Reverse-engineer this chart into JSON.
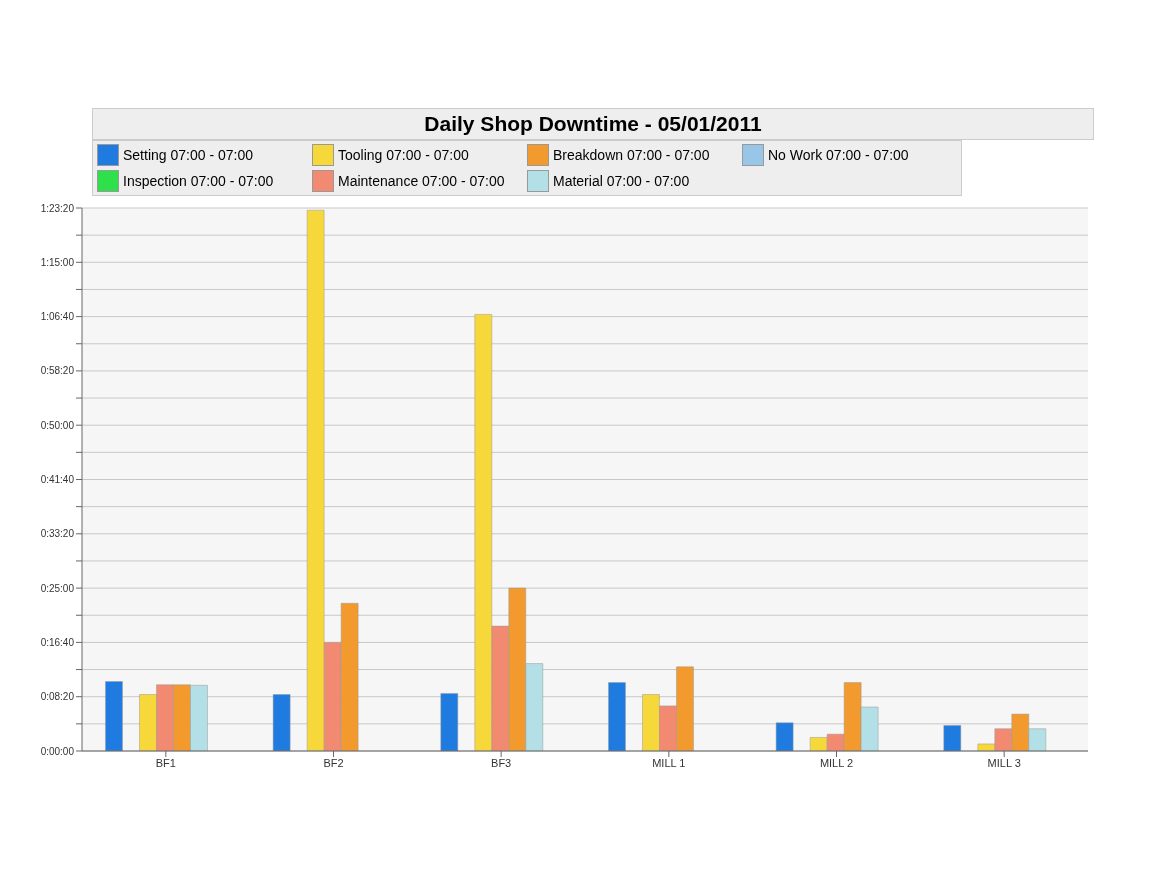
{
  "chart_data": {
    "type": "bar",
    "title": "Daily Shop Downtime - 05/01/2011",
    "categories": [
      "BF1",
      "BF2",
      "BF3",
      "MILL 1",
      "MILL 2",
      "MILL 3"
    ],
    "series": [
      {
        "name": "Setting 07:00 - 07:00",
        "color": "#1f7be0",
        "values": [
          640,
          520,
          530,
          630,
          260,
          235
        ]
      },
      {
        "name": "Inspection 07:00 - 07:00",
        "color": "#2ee04a",
        "values": [
          0,
          0,
          0,
          0,
          0,
          0
        ]
      },
      {
        "name": "Tooling 07:00 - 07:00",
        "color": "#f7d83a",
        "values": [
          520,
          4980,
          4020,
          520,
          125,
          65
        ]
      },
      {
        "name": "Maintenance 07:00 - 07:00",
        "color": "#f28a72",
        "values": [
          610,
          1000,
          1150,
          415,
          155,
          205
        ]
      },
      {
        "name": "Breakdown 07:00 - 07:00",
        "color": "#f39a2e",
        "values": [
          610,
          1360,
          1500,
          775,
          630,
          340
        ]
      },
      {
        "name": "Material 07:00 - 07:00",
        "color": "#b3dfe6",
        "values": [
          605,
          null,
          805,
          null,
          405,
          205
        ]
      },
      {
        "name": "No Work 07:00 - 07:00",
        "color": "#98c6e6",
        "values": [
          0,
          0,
          0,
          0,
          0,
          0
        ]
      }
    ],
    "ylim": [
      0,
      5000
    ],
    "yticks": [
      {
        "value": 0,
        "label": "0:00:00"
      },
      {
        "value": 250,
        "label": null
      },
      {
        "value": 500,
        "label": "0:08:20"
      },
      {
        "value": 750,
        "label": null
      },
      {
        "value": 1000,
        "label": "0:16:40"
      },
      {
        "value": 1250,
        "label": null
      },
      {
        "value": 1500,
        "label": "0:25:00"
      },
      {
        "value": 1750,
        "label": null
      },
      {
        "value": 2000,
        "label": "0:33:20"
      },
      {
        "value": 2250,
        "label": null
      },
      {
        "value": 2500,
        "label": "0:41:40"
      },
      {
        "value": 2750,
        "label": null
      },
      {
        "value": 3000,
        "label": "0:50:00"
      },
      {
        "value": 3250,
        "label": null
      },
      {
        "value": 3500,
        "label": "0:58:20"
      },
      {
        "value": 3750,
        "label": null
      },
      {
        "value": 4000,
        "label": "1:06:40"
      },
      {
        "value": 4250,
        "label": null
      },
      {
        "value": 4500,
        "label": "1:15:00"
      },
      {
        "value": 4750,
        "label": null
      },
      {
        "value": 5000,
        "label": "1:23:20"
      }
    ],
    "grid": "y",
    "legend": "top"
  }
}
